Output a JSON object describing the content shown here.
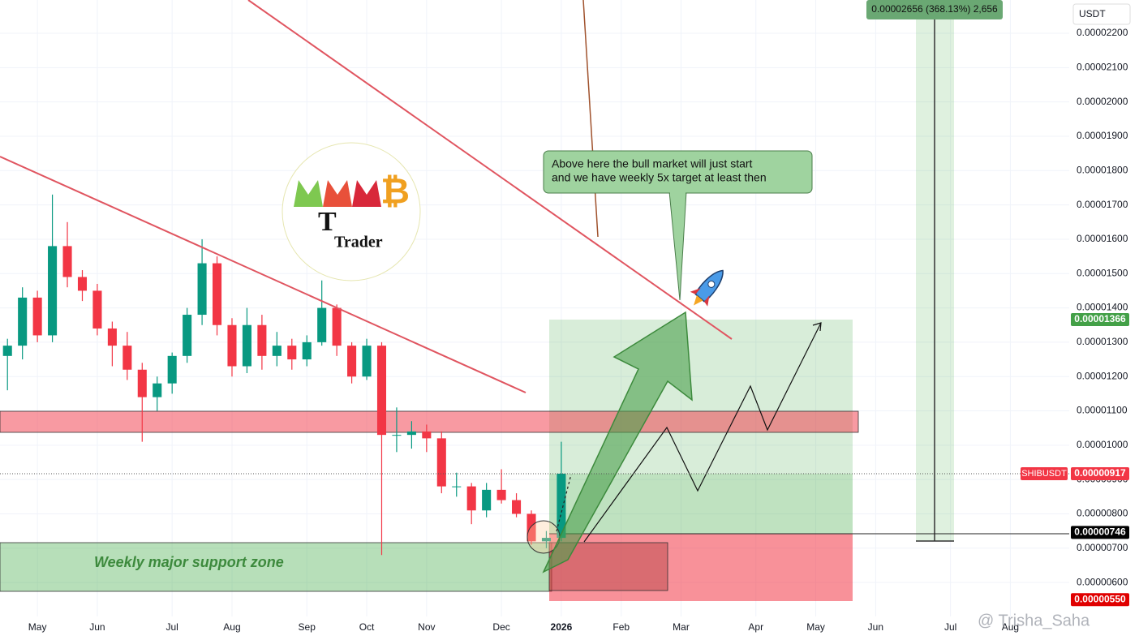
{
  "chart_data": {
    "type": "candlestick",
    "currency": "USDT",
    "symbol": "SHIBUSDT",
    "up_color": "#089981",
    "down_color": "#f23645",
    "categories": [
      null,
      null,
      "May",
      null,
      null,
      null,
      "Jun",
      null,
      null,
      null,
      null,
      "Jul",
      null,
      null,
      null,
      "Aug",
      null,
      null,
      null,
      null,
      "Sep",
      null,
      null,
      null,
      "Oct",
      null,
      null,
      null,
      "Nov",
      null,
      null,
      null,
      null,
      "Dec",
      null,
      null,
      null,
      "2026",
      null,
      null,
      null,
      "Feb",
      null,
      null,
      null,
      "Mar",
      null,
      null,
      null,
      null,
      "Apr",
      null,
      null,
      null,
      "May",
      null,
      null,
      null,
      "Jun",
      null,
      null,
      null,
      null,
      "Jul",
      null,
      null,
      null,
      "Aug",
      null,
      null,
      null
    ],
    "open": [
      1.26e-05,
      1.29e-05,
      1.43e-05,
      1.32e-05,
      1.58e-05,
      1.49e-05,
      1.45e-05,
      1.34e-05,
      1.29e-05,
      1.22e-05,
      1.14e-05,
      1.18e-05,
      1.26e-05,
      1.38e-05,
      1.53e-05,
      1.35e-05,
      1.23e-05,
      1.35e-05,
      1.26e-05,
      1.29e-05,
      1.25e-05,
      1.3e-05,
      1.4e-05,
      1.29e-05,
      1.2e-05,
      1.29e-05,
      1.03e-05,
      1.03e-05,
      1.04e-05,
      1.02e-05,
      8.8e-06,
      8.8e-06,
      8.1e-06,
      8.7e-06,
      8.4e-06,
      8e-06,
      7.2e-06,
      7.3e-06,
      null,
      null,
      null,
      null,
      null,
      null,
      null,
      null,
      null,
      null,
      null,
      null,
      null,
      null,
      null,
      null,
      null,
      null,
      null,
      null,
      null,
      null,
      null,
      null,
      null,
      null,
      null,
      null,
      null,
      null,
      null,
      null,
      null
    ],
    "high": [
      1.31e-05,
      1.46e-05,
      1.45e-05,
      1.73e-05,
      1.65e-05,
      1.51e-05,
      1.47e-05,
      1.36e-05,
      1.33e-05,
      1.24e-05,
      1.2e-05,
      1.27e-05,
      1.4e-05,
      1.6e-05,
      1.55e-05,
      1.37e-05,
      1.4e-05,
      1.38e-05,
      1.33e-05,
      1.31e-05,
      1.32e-05,
      1.48e-05,
      1.41e-05,
      1.3e-05,
      1.31e-05,
      1.3e-05,
      1.11e-05,
      1.07e-05,
      1.06e-05,
      1.04e-05,
      9.2e-06,
      8.9e-06,
      8.9e-06,
      9.3e-06,
      8.6e-06,
      8.1e-06,
      7.5e-06,
      1.01e-05,
      null,
      null,
      null,
      null,
      null,
      null,
      null,
      null,
      null,
      null,
      null,
      null,
      null,
      null,
      null,
      null,
      null,
      null,
      null,
      null,
      null,
      null,
      null,
      null,
      null,
      null,
      null,
      null,
      null,
      null,
      null,
      null,
      null
    ],
    "low": [
      1.16e-05,
      1.25e-05,
      1.3e-05,
      1.3e-05,
      1.46e-05,
      1.42e-05,
      1.32e-05,
      1.23e-05,
      1.19e-05,
      1.01e-05,
      1.1e-05,
      1.15e-05,
      1.24e-05,
      1.35e-05,
      1.32e-05,
      1.2e-05,
      1.21e-05,
      1.22e-05,
      1.23e-05,
      1.22e-05,
      1.23e-05,
      1.29e-05,
      1.26e-05,
      1.18e-05,
      1.19e-05,
      6.8e-06,
      9.8e-06,
      9.9e-06,
      9.8e-06,
      8.6e-06,
      8.5e-06,
      7.7e-06,
      7.9e-06,
      8.3e-06,
      7.9e-06,
      7.1e-06,
      7e-06,
      7.2e-06,
      null,
      null,
      null,
      null,
      null,
      null,
      null,
      null,
      null,
      null,
      null,
      null,
      null,
      null,
      null,
      null,
      null,
      null,
      null,
      null,
      null,
      null,
      null,
      null,
      null,
      null,
      null,
      null,
      null,
      null,
      null,
      null,
      null
    ],
    "close": [
      1.29e-05,
      1.43e-05,
      1.32e-05,
      1.58e-05,
      1.49e-05,
      1.45e-05,
      1.34e-05,
      1.29e-05,
      1.22e-05,
      1.14e-05,
      1.18e-05,
      1.26e-05,
      1.38e-05,
      1.53e-05,
      1.35e-05,
      1.23e-05,
      1.35e-05,
      1.26e-05,
      1.29e-05,
      1.25e-05,
      1.3e-05,
      1.4e-05,
      1.29e-05,
      1.2e-05,
      1.29e-05,
      1.03e-05,
      1.03e-05,
      1.04e-05,
      1.02e-05,
      8.8e-06,
      8.8e-06,
      8.1e-06,
      8.7e-06,
      8.4e-06,
      8e-06,
      7.2e-06,
      7.3e-06,
      9.17e-06,
      null,
      null,
      null,
      null,
      null,
      null,
      null,
      null,
      null,
      null,
      null,
      null,
      null,
      null,
      null,
      null,
      null,
      null,
      null,
      null,
      null,
      null,
      null,
      null,
      null,
      null,
      null,
      null,
      null,
      null,
      null,
      null,
      null
    ],
    "ylim": [
      5.01e-06,
      2.297e-05
    ],
    "yticks": [
      {
        "value": 6e-06,
        "label": "0.00000600"
      },
      {
        "value": 7e-06,
        "label": "0.00000700"
      },
      {
        "value": 8e-06,
        "label": "0.00000800"
      },
      {
        "value": 9e-06,
        "label": "0.00000900"
      },
      {
        "value": 1e-05,
        "label": "0.00001000"
      },
      {
        "value": 1.1e-05,
        "label": "0.00001100"
      },
      {
        "value": 1.2e-05,
        "label": "0.00001200"
      },
      {
        "value": 1.3e-05,
        "label": "0.00001300"
      },
      {
        "value": 1.4e-05,
        "label": "0.00001400"
      },
      {
        "value": 1.5e-05,
        "label": "0.00001500"
      },
      {
        "value": 1.6e-05,
        "label": "0.00001600"
      },
      {
        "value": 1.7e-05,
        "label": "0.00001700"
      },
      {
        "value": 1.8e-05,
        "label": "0.00001800"
      },
      {
        "value": 1.9e-05,
        "label": "0.00001900"
      },
      {
        "value": 2e-05,
        "label": "0.00002000"
      },
      {
        "value": 2.1e-05,
        "label": "0.00002100"
      },
      {
        "value": 2.2e-05,
        "label": "0.00002200"
      }
    ],
    "price_labels": [
      {
        "value": 1.366e-05,
        "label": "0.00001366",
        "color": "#43a047"
      },
      {
        "value": 9.17e-06,
        "label": "0.00000917",
        "color": "#f23645"
      },
      {
        "value": 7.46e-06,
        "label": "0.00000746",
        "color": "#000000"
      },
      {
        "value": 5.5e-06,
        "label": "0.00000550",
        "color": "#e00000"
      }
    ],
    "callout": [
      "Above here the bull market will just start",
      "and we have weekly 5x target at least then"
    ],
    "zone_label": "Weekly major support zone",
    "measure_label": "0.00002656 (368.13%) 2,656",
    "logo_text": "Trader",
    "watermark": "@ Trisha_Saha"
  }
}
